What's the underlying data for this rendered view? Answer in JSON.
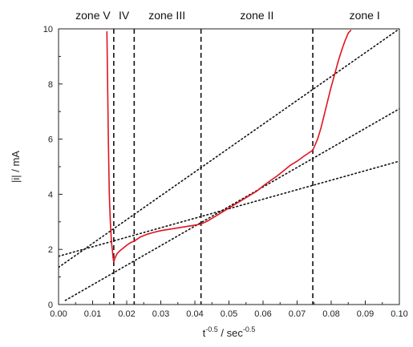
{
  "chart_data": {
    "type": "line",
    "xlabel": {
      "base": "t",
      "base_exp": "-0.5",
      "unit": " / sec",
      "unit_exp": "-0.5"
    },
    "ylabel": "|i| / mA",
    "xlim": [
      0.0,
      0.1
    ],
    "ylim": [
      0,
      10
    ],
    "x_ticks": [
      0.0,
      0.01,
      0.02,
      0.03,
      0.04,
      0.05,
      0.06,
      0.07,
      0.08,
      0.09,
      0.1
    ],
    "x_tick_labels": [
      "0.00",
      "0.01",
      "0.02",
      "0.03",
      "0.04",
      "0.05",
      "0.06",
      "0.07",
      "0.08",
      "0.09",
      "0.10"
    ],
    "y_ticks": [
      0,
      2,
      4,
      6,
      8,
      10
    ],
    "y_tick_labels": [
      "0",
      "2",
      "4",
      "6",
      "8",
      "10"
    ],
    "grid": false,
    "legend": "none",
    "zone_boundaries": [
      0.0162,
      0.0222,
      0.0418,
      0.0746
    ],
    "zones": [
      {
        "label": "zone V",
        "x": 0.0101
      },
      {
        "label": "IV",
        "x": 0.0192
      },
      {
        "label": "zone III",
        "x": 0.0318
      },
      {
        "label": "zone II",
        "x": 0.0582
      },
      {
        "label": "zone I",
        "x": 0.0898
      }
    ],
    "fit_lines": [
      {
        "x": [
          0.0,
          0.1
        ],
        "y": [
          1.35,
          10.0
        ]
      },
      {
        "x": [
          0.002,
          0.1
        ],
        "y": [
          0.15,
          7.1
        ]
      },
      {
        "x": [
          0.0,
          0.1
        ],
        "y": [
          1.75,
          5.2
        ]
      }
    ],
    "series": [
      {
        "color": "#e0141e",
        "x": [
          0.0142,
          0.0144,
          0.0146,
          0.0149,
          0.0152,
          0.0155,
          0.0158,
          0.016,
          0.0162,
          0.0166,
          0.0172,
          0.018,
          0.019,
          0.02,
          0.0212,
          0.0222,
          0.024,
          0.026,
          0.028,
          0.03,
          0.032,
          0.034,
          0.036,
          0.038,
          0.04,
          0.0418,
          0.044,
          0.046,
          0.048,
          0.05,
          0.052,
          0.054,
          0.056,
          0.058,
          0.06,
          0.062,
          0.064,
          0.066,
          0.068,
          0.07,
          0.072,
          0.074,
          0.0746,
          0.076,
          0.077,
          0.078,
          0.079,
          0.08,
          0.081,
          0.082,
          0.083,
          0.084,
          0.085,
          0.0858
        ],
        "y": [
          9.9,
          8.0,
          6.0,
          4.0,
          3.0,
          2.3,
          1.95,
          1.7,
          1.55,
          1.7,
          1.85,
          1.95,
          2.05,
          2.15,
          2.25,
          2.3,
          2.45,
          2.55,
          2.62,
          2.68,
          2.72,
          2.76,
          2.8,
          2.84,
          2.88,
          2.92,
          3.05,
          3.2,
          3.35,
          3.5,
          3.65,
          3.8,
          3.95,
          4.1,
          4.3,
          4.48,
          4.65,
          4.85,
          5.05,
          5.2,
          5.38,
          5.55,
          5.6,
          6.0,
          6.4,
          6.9,
          7.4,
          7.9,
          8.35,
          8.8,
          9.2,
          9.55,
          9.85,
          9.95
        ]
      }
    ]
  }
}
